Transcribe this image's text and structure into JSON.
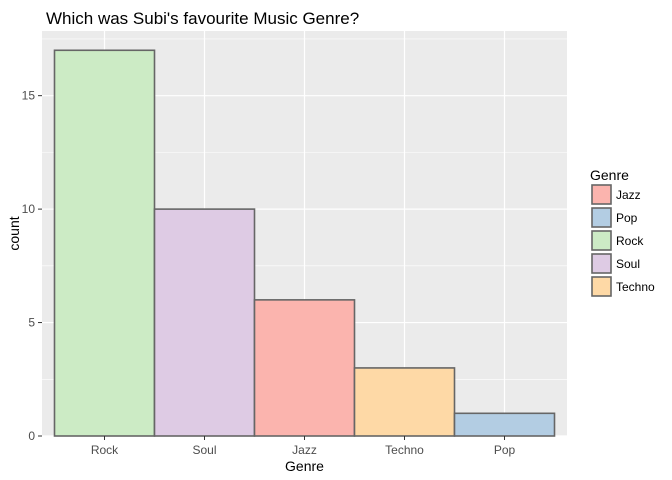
{
  "chart_data": {
    "type": "bar",
    "title": "Which was Subi's favourite Music Genre?",
    "xlabel": "Genre",
    "ylabel": "count",
    "categories": [
      "Rock",
      "Soul",
      "Jazz",
      "Techno",
      "Pop"
    ],
    "values": [
      17,
      10,
      6,
      3,
      1
    ],
    "bar_colors": [
      "#ccebc5",
      "#decbe4",
      "#fbb4ae",
      "#fed9a6",
      "#b3cde3"
    ],
    "ylim": [
      0,
      17.85
    ],
    "yticks": [
      0,
      5,
      10,
      15
    ],
    "grid": true,
    "legend": {
      "title": "Genre",
      "placement": "right",
      "entries": [
        {
          "label": "Jazz",
          "color": "#fbb4ae"
        },
        {
          "label": "Pop",
          "color": "#b3cde3"
        },
        {
          "label": "Rock",
          "color": "#ccebc5"
        },
        {
          "label": "Soul",
          "color": "#decbe4"
        },
        {
          "label": "Techno",
          "color": "#fed9a6"
        }
      ]
    },
    "panel_color": "#ebebeb",
    "grid_color": "#ffffff",
    "bar_border_color": "#666666"
  }
}
